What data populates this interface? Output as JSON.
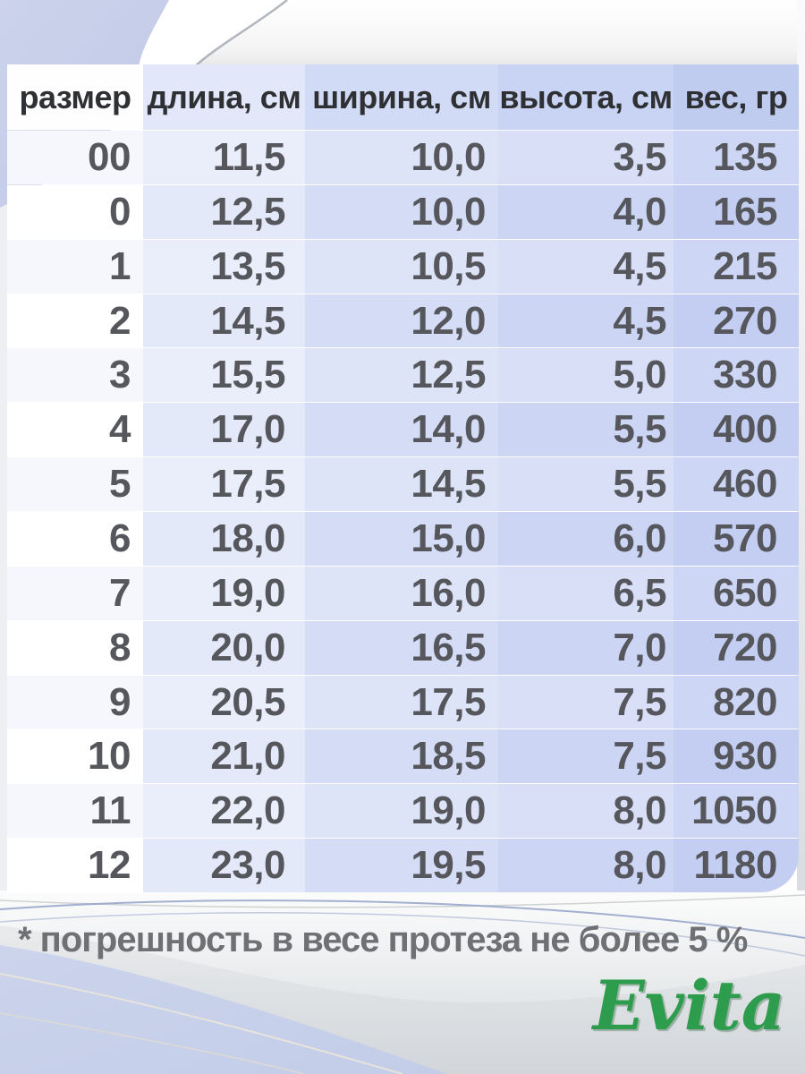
{
  "chart_data": {
    "type": "table",
    "title": "",
    "columns": [
      "размер",
      "длина, см",
      "ширина, см",
      "высота, см",
      "вес, гр"
    ],
    "rows": [
      [
        "00",
        "11,5",
        "10,0",
        "3,5",
        "135"
      ],
      [
        "0",
        "12,5",
        "10,0",
        "4,0",
        "165"
      ],
      [
        "1",
        "13,5",
        "10,5",
        "4,5",
        "215"
      ],
      [
        "2",
        "14,5",
        "12,0",
        "4,5",
        "270"
      ],
      [
        "3",
        "15,5",
        "12,5",
        "5,0",
        "330"
      ],
      [
        "4",
        "17,0",
        "14,0",
        "5,5",
        "400"
      ],
      [
        "5",
        "17,5",
        "14,5",
        "5,5",
        "460"
      ],
      [
        "6",
        "18,0",
        "15,0",
        "6,0",
        "570"
      ],
      [
        "7",
        "19,0",
        "16,0",
        "6,5",
        "650"
      ],
      [
        "8",
        "20,0",
        "16,5",
        "7,0",
        "720"
      ],
      [
        "9",
        "20,5",
        "17,5",
        "7,5",
        "820"
      ],
      [
        "10",
        "21,0",
        "18,5",
        "7,5",
        "930"
      ],
      [
        "11",
        "22,0",
        "19,0",
        "8,0",
        "1050"
      ],
      [
        "12",
        "23,0",
        "19,5",
        "8,0",
        "1180"
      ]
    ],
    "layout": {
      "grid": false,
      "row_striping": true,
      "value_alignment": "right"
    }
  },
  "footnote": {
    "text": "* погрешность в весе протеза не более 5 %"
  },
  "brand": {
    "name": "Evita"
  },
  "colors": {
    "brand_green": "#2e9c4d",
    "footnote_gray": "#6f7073",
    "accent_periwinkle": "#c7d0e9",
    "header_fills": [
      "#fefefe",
      "#e2e8f9",
      "#d1dbf5",
      "#c9d3f3",
      "#bfccf0"
    ],
    "value_text": "#55575c",
    "header_text": "#2f3033"
  }
}
